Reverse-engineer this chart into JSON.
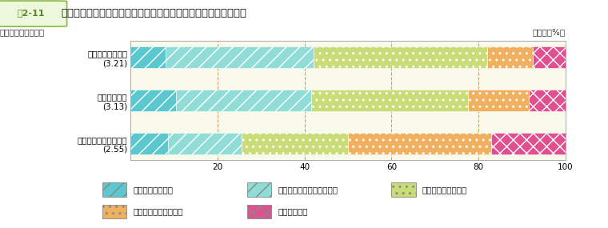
{
  "title_box_text": "図2-11",
  "title_main": "【報酬・処遇】の領域に属する質問項目別の回答割合及び平均値",
  "ylabel_label": "質問項目（平均値）",
  "unit_label": "（単位：%）",
  "categories": [
    "福利厚生の満足度\n(3.21)",
    "給与の満足度\n(3.13)",
    "退職後の生活の安心感\n(2.55)"
  ],
  "segments": [
    {
      "label": "まったくその通り",
      "values": [
        8.0,
        10.5,
        8.5
      ],
      "color": "#5BC8D0",
      "hatch": "//"
    },
    {
      "label": "どちらかといえばその通り",
      "values": [
        34.0,
        31.0,
        17.0
      ],
      "color": "#90DDD8",
      "hatch": "//"
    },
    {
      "label": "どちらともいえない",
      "values": [
        40.0,
        36.0,
        24.5
      ],
      "color": "#C8DC78",
      "hatch": ".."
    },
    {
      "label": "どちらかといえば違う",
      "values": [
        10.5,
        14.0,
        33.0
      ],
      "color": "#F0B060",
      "hatch": ".."
    },
    {
      "label": "まったく違う",
      "values": [
        7.5,
        8.5,
        17.0
      ],
      "color": "#E05090",
      "hatch": "xx"
    }
  ],
  "xlim": [
    0,
    100
  ],
  "xticks": [
    0,
    20,
    40,
    60,
    80,
    100
  ],
  "bg_color": "#FAFAEC",
  "fig_bg": "#FFFFFF",
  "grid_color": "#C8A070",
  "bar_height": 0.5,
  "legend_items": [
    {
      "label": "まったくその通り",
      "color": "#5BC8D0",
      "hatch": "//"
    },
    {
      "label": "どちらかといえばその通り",
      "color": "#90DDD8",
      "hatch": "//"
    },
    {
      "label": "どちらともいえない",
      "color": "#C8DC78",
      "hatch": ".."
    },
    {
      "label": "どちらかといえば違う",
      "color": "#F0B060",
      "hatch": ".."
    },
    {
      "label": "まったく違う",
      "color": "#E05090",
      "hatch": "xx"
    }
  ]
}
